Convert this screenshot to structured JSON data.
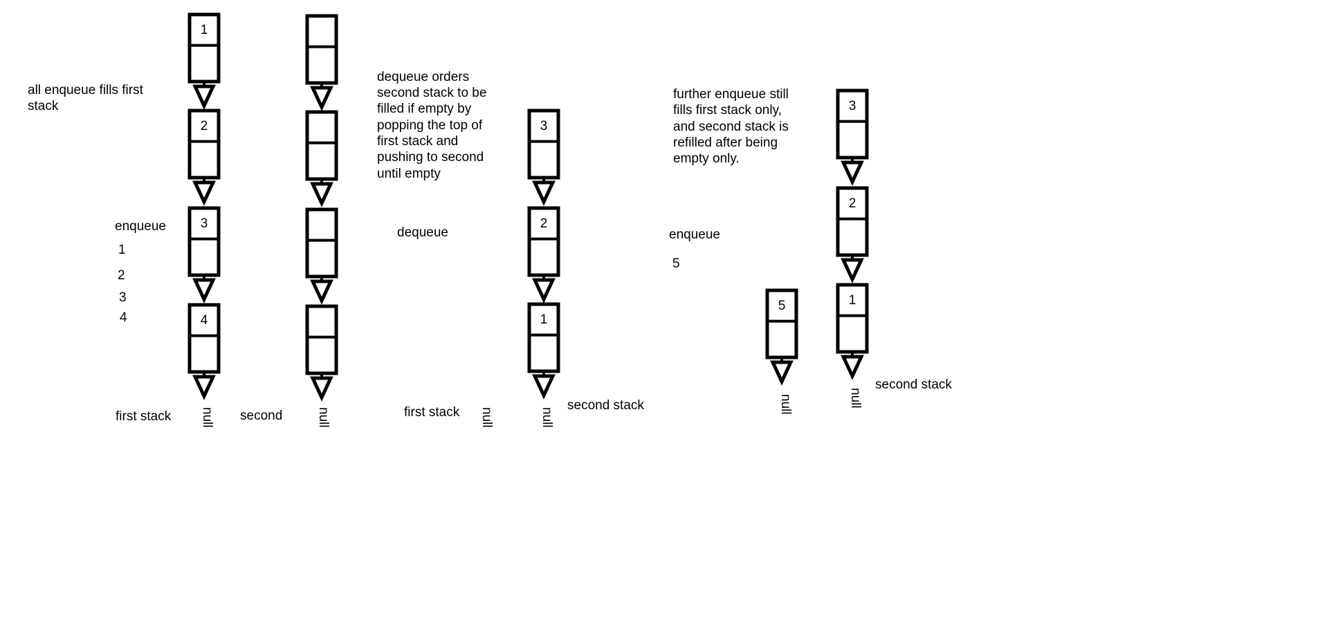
{
  "stage1": {
    "note_lines": [
      "all enqueue fills first",
      "stack"
    ],
    "op_label": "enqueue",
    "op_values": [
      "1",
      "2",
      "3",
      "4"
    ],
    "first_stack_nodes": [
      "1",
      "2",
      "3",
      "4"
    ],
    "second_stack_nodes": [
      "",
      "",
      "",
      ""
    ],
    "first_stack_label": "first stack",
    "second_stack_label": "second",
    "first_null": "null",
    "second_null": "null"
  },
  "stage2": {
    "note_lines": [
      "dequeue orders",
      "second stack to be",
      "filled if empty by",
      "popping the top of",
      "first stack and",
      "pushing to second",
      "until empty"
    ],
    "op_label": "dequeue",
    "first_stack_label": "first stack",
    "first_null": "null",
    "second_stack_nodes": [
      "3",
      "2",
      "1"
    ],
    "second_stack_label": "second stack",
    "second_null": "null"
  },
  "stage3": {
    "note_lines": [
      "further enqueue still",
      "fills first stack only,",
      "and second stack is",
      "refilled after being",
      "empty only."
    ],
    "op_label": "enqueue",
    "op_value": "5",
    "first_stack_nodes": [
      "5"
    ],
    "first_null": "null",
    "second_stack_nodes": [
      "3",
      "2",
      "1"
    ],
    "second_stack_label": "second stack",
    "second_null": "null"
  }
}
